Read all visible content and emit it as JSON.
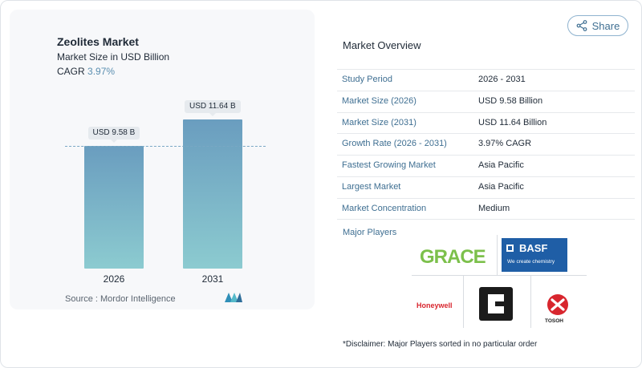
{
  "chart": {
    "title": "Zeolites Market",
    "subtitle": "Market Size in USD Billion",
    "cagr_label": "CAGR",
    "cagr_value": "3.97%",
    "source": "Source :  Mordor Intelligence"
  },
  "chart_data": {
    "type": "bar",
    "categories": [
      "2026",
      "2031"
    ],
    "values": [
      9.58,
      11.64
    ],
    "data_labels": [
      "USD 9.58 B",
      "USD 11.64 B"
    ],
    "title": "Zeolites Market",
    "subtitle": "Market Size in USD Billion",
    "colors": [
      "#6a9dbf",
      "#8ccbd0"
    ]
  },
  "share": {
    "label": "Share",
    "icon": "share-icon"
  },
  "overview": {
    "title": "Market Overview",
    "rows": [
      {
        "key": "Study Period",
        "value": "2026 - 2031"
      },
      {
        "key": "Market Size (2026)",
        "value": "USD 9.58 Billion"
      },
      {
        "key": "Market Size (2031)",
        "value": "USD 11.64 Billion"
      },
      {
        "key": "Growth Rate (2026 - 2031)",
        "value": "3.97% CAGR"
      },
      {
        "key": "Fastest Growing Market",
        "value": "Asia Pacific"
      },
      {
        "key": "Largest Market",
        "value": "Asia Pacific"
      },
      {
        "key": "Market Concentration",
        "value": "Medium"
      }
    ]
  },
  "players": {
    "title": "Major Players",
    "grace": "GRACE",
    "basf_name": "BASF",
    "basf_tagline": "We create chemistry",
    "honeywell": "Honeywell",
    "tosoh": "TOSOH"
  },
  "disclaimer": "*Disclaimer: Major Players sorted in no particular order",
  "colors": {
    "accent": "#3f6f92",
    "bar_top": "#6a9dbf",
    "bar_bottom": "#8ccbd0"
  }
}
